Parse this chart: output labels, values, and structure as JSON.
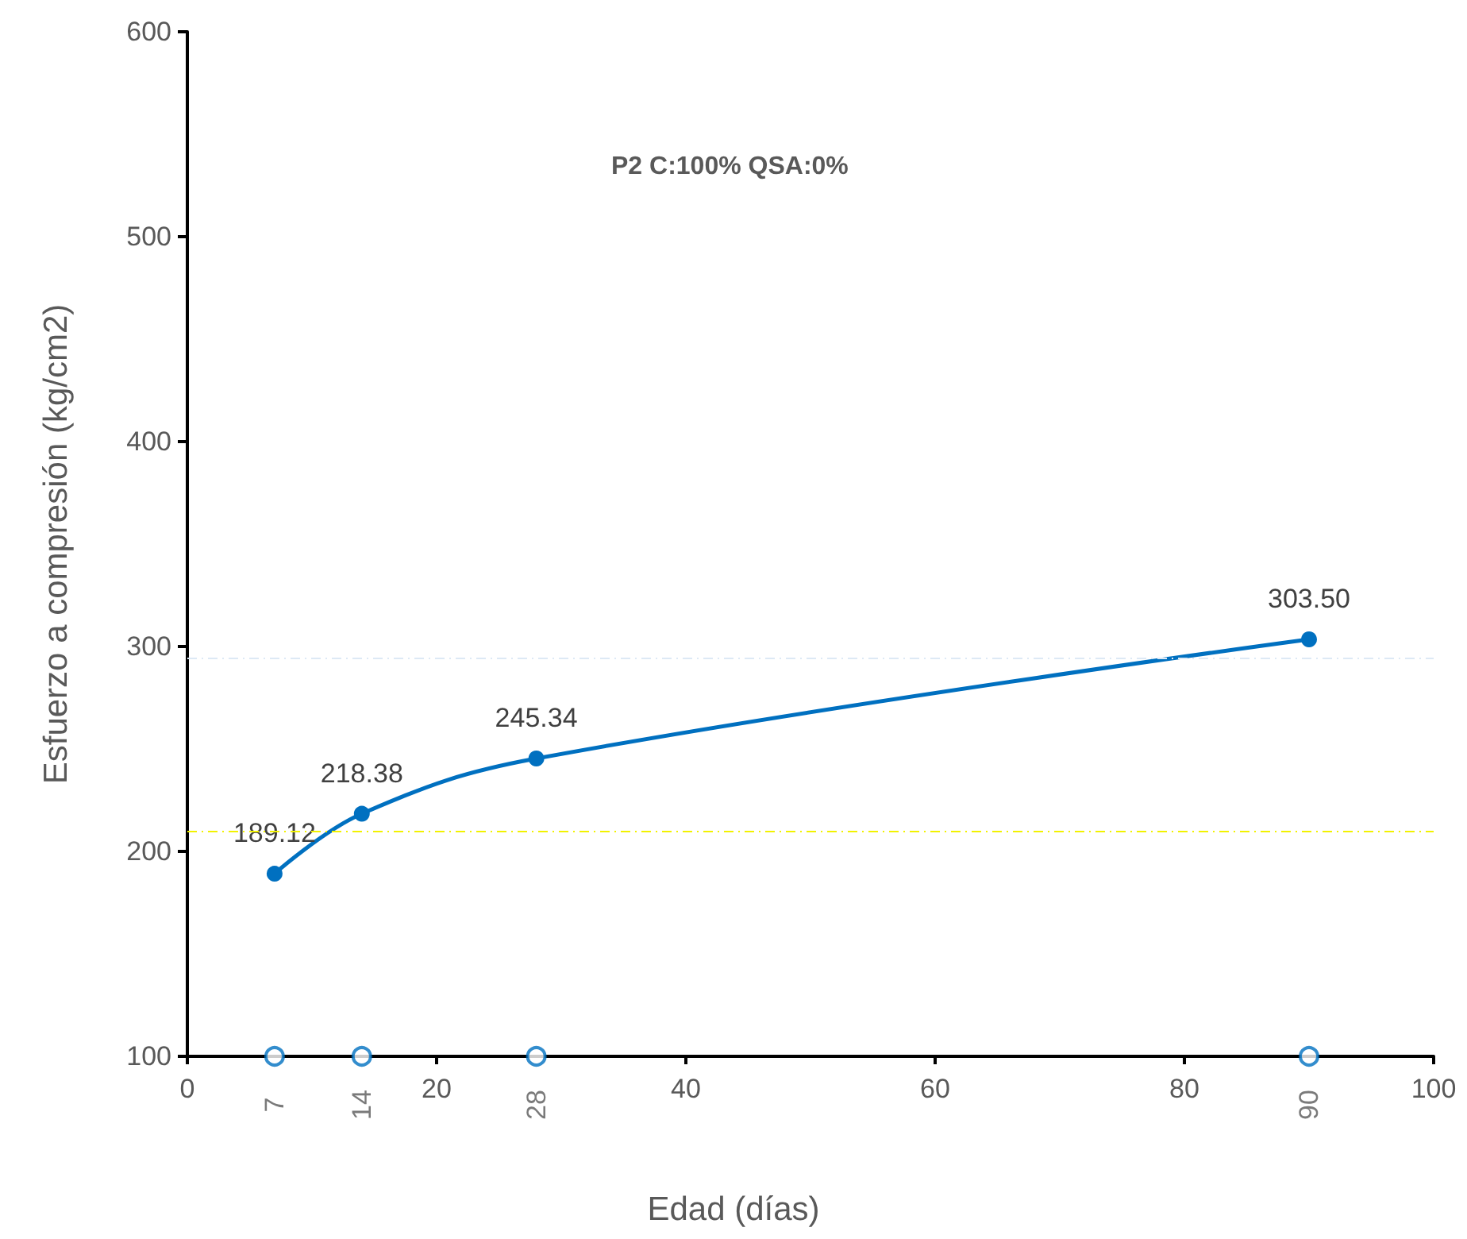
{
  "chart_data": {
    "type": "line",
    "title": "P2 C:100% QSA:0%",
    "xlabel": "Edad (días)",
    "ylabel": "Esfuerzo a compresión (kg/cm2)",
    "series": [
      {
        "color": "#0070c0",
        "x": [
          7,
          14,
          28,
          90
        ],
        "values": [
          189.12,
          218.38,
          245.34,
          303.5
        ],
        "value_labels": [
          "189.12",
          "218.38",
          "245.34",
          "303.50"
        ],
        "marker": "circle"
      },
      {
        "type": "scatter",
        "color": "#0070c0",
        "x": [
          7,
          14,
          28,
          90
        ],
        "values": [
          100,
          100,
          100,
          100
        ],
        "marker": "circle"
      }
    ],
    "annotations": [
      {
        "text": "7",
        "x": 7,
        "y": 100
      },
      {
        "text": "14",
        "x": 14,
        "y": 100
      },
      {
        "text": "28",
        "x": 28,
        "y": 100
      },
      {
        "text": "90",
        "x": 90,
        "y": 100
      }
    ],
    "xlim": [
      0,
      100
    ],
    "xticks": [
      0,
      20,
      40,
      60,
      80,
      100
    ],
    "ylim": [
      100,
      600
    ],
    "yticks": [
      100,
      200,
      300,
      400,
      500,
      600
    ],
    "ref_lines": [
      {
        "axis": "y",
        "value": 294,
        "color": "#dde9f5",
        "line_style": "dashed"
      },
      {
        "axis": "y",
        "value": 210,
        "color": "#f2f200",
        "line_style": "dashed"
      }
    ],
    "grid": false
  }
}
